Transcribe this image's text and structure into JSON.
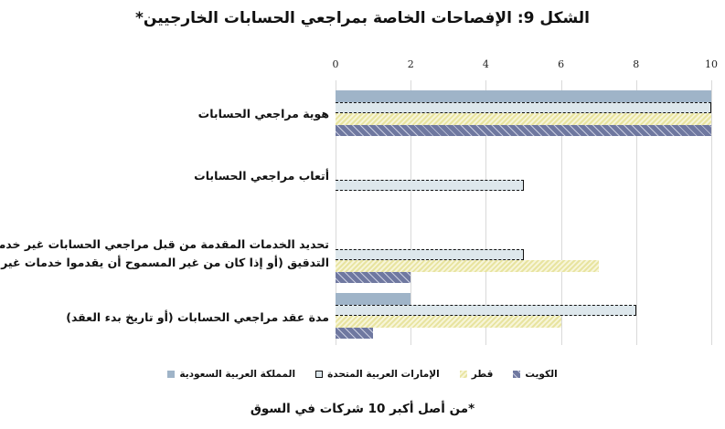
{
  "title": "الشكل 9: الإفصاحات الخاصة بمراجعي الحسابات الخارجيين*",
  "footnote": "*من أصل أكبر 10 شركات في السوق",
  "axis": {
    "ticks": [
      "0",
      "2",
      "4",
      "6",
      "8",
      "10"
    ]
  },
  "categories": [
    {
      "label_lines": [
        "هوية مراجعي الحسابات"
      ]
    },
    {
      "label_lines": [
        "أتعاب مراجعي الحسابات"
      ]
    },
    {
      "label_lines": [
        "تحديد الخدمات المقدمة من قبل مراجعي الحسابات غير خدمات",
        "التدقيق (أو إذا كان من غير المسموح أن يقدموا خدمات غير التدقيق)"
      ]
    },
    {
      "label_lines": [
        "مدة عقد مراجعي الحسابات (أو تاريخ بدء العقد)"
      ]
    }
  ],
  "legend": [
    {
      "label": "الكويت",
      "key": "kw"
    },
    {
      "label": "قطر",
      "key": "qa"
    },
    {
      "label": "الإمارات العربية المتحدة",
      "key": "ae"
    },
    {
      "label": "المملكة العربية السعودية",
      "key": "sa"
    }
  ],
  "colors": {
    "sa": "#9fb4c8",
    "ae": "#dde7ec",
    "qa": "#e8e4a0",
    "kw": "#6f78a0"
  },
  "chart_data": {
    "type": "bar",
    "orientation": "horizontal",
    "title": "الشكل 9: الإفصاحات الخاصة بمراجعي الحسابات الخارجيين*",
    "categories": [
      "هوية مراجعي الحسابات",
      "أتعاب مراجعي الحسابات",
      "تحديد الخدمات المقدمة من قبل مراجعي الحسابات غير خدمات التدقيق (أو إذا كان من غير المسموح أن يقدموا خدمات غير التدقيق)",
      "مدة عقد مراجعي الحسابات (أو تاريخ بدء العقد)"
    ],
    "series": [
      {
        "name": "المملكة العربية السعودية",
        "values": [
          10,
          0,
          0,
          2
        ]
      },
      {
        "name": "الإمارات العربية المتحدة",
        "values": [
          10,
          5,
          5,
          8
        ]
      },
      {
        "name": "قطر",
        "values": [
          10,
          0,
          7,
          6
        ]
      },
      {
        "name": "الكويت",
        "values": [
          10,
          0,
          2,
          1
        ]
      }
    ],
    "xlabel": "",
    "ylabel": "",
    "xlim": [
      0,
      10
    ],
    "xticks": [
      0,
      2,
      4,
      6,
      8,
      10
    ],
    "grid": true,
    "legend_position": "bottom",
    "annotations": [
      "*من أصل أكبر 10 شركات في السوق"
    ]
  }
}
